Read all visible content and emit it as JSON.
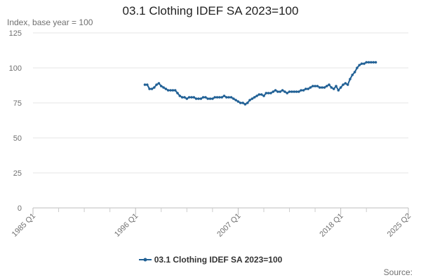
{
  "chart_data": {
    "type": "line",
    "title": "03.1 Clothing IDEF SA 2023=100",
    "ylabel": "Index, base year = 100",
    "xlabel": "",
    "ylim": [
      0,
      125
    ],
    "yticks": [
      "0",
      "25",
      "50",
      "75",
      "100",
      "125"
    ],
    "xlim": [
      1985.0,
      2025.25
    ],
    "xticks": [
      {
        "label": "1985 Q1",
        "x": 1985.0
      },
      {
        "label": "1996 Q1",
        "x": 1996.0
      },
      {
        "label": "2007 Q1",
        "x": 2007.0
      },
      {
        "label": "2018 Q1",
        "x": 2018.0
      },
      {
        "label": "2025 Q2",
        "x": 2025.25
      }
    ],
    "minor_xticks": [
      1987.75,
      1990.5,
      1993.25,
      1998.75,
      2001.5,
      2004.25,
      2009.75,
      2012.5,
      2015.25,
      2020.75
    ],
    "grid": true,
    "legend_position": "bottom-center",
    "series": [
      {
        "name": "03.1 Clothing IDEF SA 2023=100",
        "color": "#206095",
        "points": [
          [
            1997.0,
            88
          ],
          [
            1997.25,
            88
          ],
          [
            1997.5,
            85
          ],
          [
            1997.75,
            85
          ],
          [
            1998.0,
            86
          ],
          [
            1998.25,
            88
          ],
          [
            1998.5,
            89
          ],
          [
            1998.75,
            87
          ],
          [
            1999.0,
            86
          ],
          [
            1999.25,
            85
          ],
          [
            1999.5,
            84
          ],
          [
            1999.75,
            84
          ],
          [
            2000.0,
            84
          ],
          [
            2000.25,
            84
          ],
          [
            2000.5,
            82
          ],
          [
            2000.75,
            80
          ],
          [
            2001.0,
            79
          ],
          [
            2001.25,
            79
          ],
          [
            2001.5,
            78
          ],
          [
            2001.75,
            79
          ],
          [
            2002.0,
            79
          ],
          [
            2002.25,
            79
          ],
          [
            2002.5,
            78
          ],
          [
            2002.75,
            78
          ],
          [
            2003.0,
            78
          ],
          [
            2003.25,
            79
          ],
          [
            2003.5,
            79
          ],
          [
            2003.75,
            78
          ],
          [
            2004.0,
            78
          ],
          [
            2004.25,
            78
          ],
          [
            2004.5,
            79
          ],
          [
            2004.75,
            79
          ],
          [
            2005.0,
            79
          ],
          [
            2005.25,
            79
          ],
          [
            2005.5,
            80
          ],
          [
            2005.75,
            79
          ],
          [
            2006.0,
            79
          ],
          [
            2006.25,
            79
          ],
          [
            2006.5,
            78
          ],
          [
            2006.75,
            77
          ],
          [
            2007.0,
            76
          ],
          [
            2007.25,
            75
          ],
          [
            2007.5,
            75
          ],
          [
            2007.75,
            74
          ],
          [
            2008.0,
            75
          ],
          [
            2008.25,
            77
          ],
          [
            2008.5,
            78
          ],
          [
            2008.75,
            79
          ],
          [
            2009.0,
            80
          ],
          [
            2009.25,
            81
          ],
          [
            2009.5,
            81
          ],
          [
            2009.75,
            80
          ],
          [
            2010.0,
            82
          ],
          [
            2010.25,
            82
          ],
          [
            2010.5,
            82
          ],
          [
            2010.75,
            83
          ],
          [
            2011.0,
            84
          ],
          [
            2011.25,
            83
          ],
          [
            2011.5,
            83
          ],
          [
            2011.75,
            84
          ],
          [
            2012.0,
            83
          ],
          [
            2012.25,
            82
          ],
          [
            2012.5,
            83
          ],
          [
            2012.75,
            83
          ],
          [
            2013.0,
            83
          ],
          [
            2013.25,
            83
          ],
          [
            2013.5,
            83
          ],
          [
            2013.75,
            84
          ],
          [
            2014.0,
            84
          ],
          [
            2014.25,
            85
          ],
          [
            2014.5,
            85
          ],
          [
            2014.75,
            86
          ],
          [
            2015.0,
            87
          ],
          [
            2015.25,
            87
          ],
          [
            2015.5,
            87
          ],
          [
            2015.75,
            86
          ],
          [
            2016.0,
            86
          ],
          [
            2016.25,
            86
          ],
          [
            2016.5,
            87
          ],
          [
            2016.75,
            88
          ],
          [
            2017.0,
            86
          ],
          [
            2017.25,
            85
          ],
          [
            2017.5,
            87
          ],
          [
            2017.75,
            84
          ],
          [
            2018.0,
            86
          ],
          [
            2018.25,
            88
          ],
          [
            2018.5,
            89
          ],
          [
            2018.75,
            88
          ],
          [
            2019.0,
            92
          ],
          [
            2019.25,
            95
          ],
          [
            2019.5,
            97
          ],
          [
            2019.75,
            100
          ],
          [
            2020.0,
            102
          ],
          [
            2020.25,
            103
          ],
          [
            2020.5,
            103
          ],
          [
            2020.75,
            104
          ],
          [
            2021.0,
            104
          ],
          [
            2021.25,
            104
          ],
          [
            2021.5,
            104
          ],
          [
            2021.75,
            104
          ]
        ]
      }
    ]
  },
  "source_label": "Source:"
}
